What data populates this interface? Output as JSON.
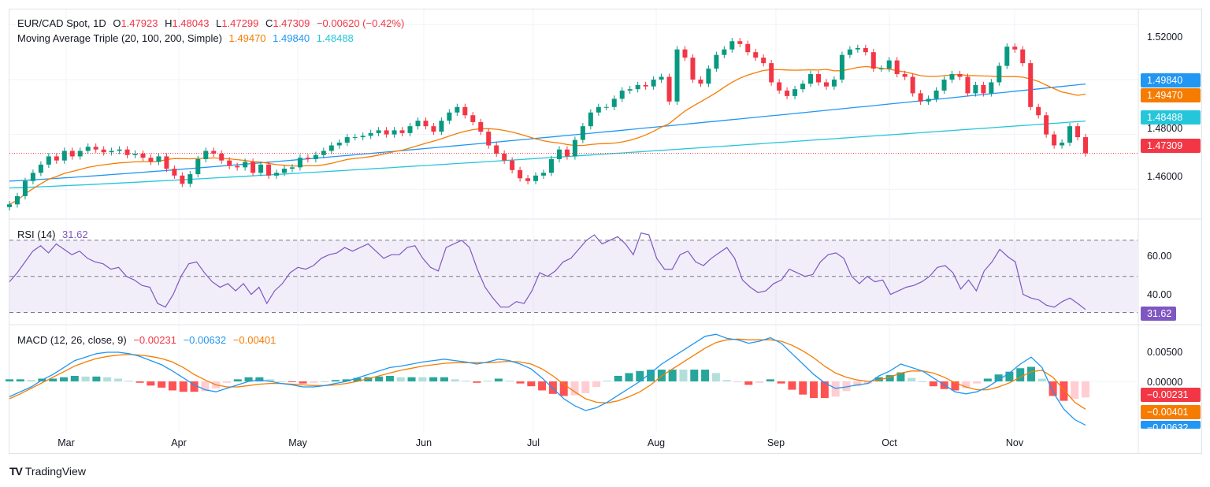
{
  "header": {
    "symbol": "EUR/CAD Spot, 1D",
    "open_label": "O",
    "open": "1.47923",
    "high_label": "H",
    "high": "1.48043",
    "low_label": "L",
    "low": "1.47299",
    "close_label": "C",
    "close": "1.47309",
    "change": "−0.00620 (−0.42%)"
  },
  "ma_legend": {
    "label": "Moving Average Triple (20, 100, 200, Simple)",
    "ma20": "1.49470",
    "ma100": "1.49840",
    "ma200": "1.48488"
  },
  "rsi_legend": {
    "label": "RSI (14)",
    "value": "31.62"
  },
  "macd_legend": {
    "label": "MACD (12, 26, close, 9)",
    "hist": "−0.00231",
    "macd": "−0.00632",
    "signal": "−0.00401"
  },
  "price_axis": [
    "1.52000",
    "1.48000",
    "1.46000"
  ],
  "price_badges": {
    "ma100": "1.49840",
    "ma20": "1.49470",
    "ma200": "1.48488",
    "close": "1.47309"
  },
  "rsi_axis": [
    "60.00",
    "40.00"
  ],
  "rsi_badge": "31.62",
  "macd_axis": [
    "0.00500",
    "0.00000"
  ],
  "macd_badges": {
    "hist": "−0.00231",
    "signal": "−0.00401",
    "macd": "−0.00632"
  },
  "x_axis": [
    "Mar",
    "Apr",
    "May",
    "Jun",
    "Jul",
    "Aug",
    "Sep",
    "Oct",
    "Nov"
  ],
  "brand": "TradingView",
  "colors": {
    "up": "#089981",
    "down": "#f23645",
    "ma20": "#f57c00",
    "ma100": "#2196f3",
    "ma200": "#26c6da",
    "rsi": "#7e57c2"
  },
  "chart_data": [
    {
      "type": "candlestick",
      "title": "EUR/CAD Spot, 1D",
      "ylim": [
        1.45,
        1.525
      ],
      "close_series_approx": [
        1.4545,
        1.4575,
        1.463,
        1.466,
        1.469,
        1.472,
        1.4705,
        1.474,
        1.472,
        1.474,
        1.4755,
        1.4745,
        1.4735,
        1.474,
        1.4745,
        1.4725,
        1.473,
        1.4715,
        1.47,
        1.472,
        1.4675,
        1.465,
        1.462,
        1.4655,
        1.471,
        1.474,
        1.473,
        1.4705,
        1.4685,
        1.468,
        1.47,
        1.466,
        1.469,
        1.465,
        1.466,
        1.4675,
        1.468,
        1.4715,
        1.471,
        1.4725,
        1.474,
        1.476,
        1.477,
        1.479,
        1.479,
        1.4795,
        1.4805,
        1.4815,
        1.48,
        1.4815,
        1.4805,
        1.483,
        1.485,
        1.483,
        1.481,
        1.485,
        1.488,
        1.49,
        1.487,
        1.4845,
        1.481,
        1.476,
        1.473,
        1.4705,
        1.467,
        1.464,
        1.463,
        1.465,
        1.466,
        1.471,
        1.4745,
        1.472,
        1.478,
        1.483,
        1.488,
        1.49,
        1.49,
        1.493,
        1.496,
        1.4965,
        1.498,
        1.4975,
        1.5,
        1.501,
        1.492,
        1.511,
        1.508,
        1.5,
        1.4985,
        1.504,
        1.509,
        1.511,
        1.514,
        1.513,
        1.51,
        1.508,
        1.506,
        1.499,
        1.496,
        1.494,
        1.4965,
        1.4985,
        1.502,
        1.499,
        1.4975,
        1.5,
        1.509,
        1.511,
        1.5115,
        1.51,
        1.504,
        1.504,
        1.507,
        1.502,
        1.501,
        1.495,
        1.492,
        1.493,
        1.496,
        1.5,
        1.502,
        1.501,
        1.495,
        1.498,
        1.495,
        1.499,
        1.505,
        1.512,
        1.511,
        1.506,
        1.49,
        1.487,
        1.48,
        1.476,
        1.477,
        1.483,
        1.479,
        1.4731
      ],
      "series": [
        {
          "name": "MA 20",
          "last": 1.4947
        },
        {
          "name": "MA 100",
          "last": 1.4984
        },
        {
          "name": "MA 200",
          "last": 1.48488
        }
      ]
    },
    {
      "type": "line",
      "title": "RSI (14)",
      "ylim": [
        25,
        80
      ],
      "bands": [
        30,
        50,
        70
      ],
      "values_approx": [
        47,
        52,
        58,
        64,
        67,
        63,
        68,
        65,
        62,
        64,
        60,
        58,
        57,
        54,
        55,
        50,
        48,
        45,
        44,
        35,
        33,
        40,
        50,
        57,
        58,
        52,
        47,
        44,
        46,
        42,
        46,
        40,
        44,
        35,
        42,
        46,
        52,
        55,
        54,
        56,
        60,
        62,
        63,
        66,
        64,
        66,
        68,
        64,
        60,
        62,
        62,
        66,
        67,
        60,
        55,
        53,
        66,
        68,
        70,
        66,
        54,
        44,
        38,
        33,
        33,
        36,
        35,
        42,
        52,
        50,
        53,
        58,
        60,
        65,
        70,
        73,
        68,
        70,
        72,
        68,
        62,
        74,
        73,
        60,
        54,
        54,
        62,
        64,
        58,
        56,
        60,
        63,
        66,
        60,
        48,
        44,
        41,
        42,
        46,
        48,
        54,
        52,
        50,
        51,
        58,
        62,
        63,
        60,
        50,
        46,
        50,
        47,
        48,
        40,
        42,
        44,
        45,
        47,
        50,
        55,
        56,
        52,
        43,
        48,
        42,
        53,
        58,
        65,
        61,
        58,
        40,
        38,
        37,
        34,
        33,
        36,
        38,
        35,
        31.62
      ],
      "last": 31.62
    },
    {
      "type": "bar",
      "title": "MACD (12, 26, close, 9)",
      "ylim": [
        -0.0075,
        0.0075
      ],
      "macd_last": -0.00632,
      "signal_last": -0.00401,
      "histogram_last": -0.00231,
      "macd_approx": [
        -0.0022,
        -0.0015,
        -0.0008,
        0.0002,
        0.001,
        0.002,
        0.003,
        0.0035,
        0.004,
        0.0042,
        0.0042,
        0.004,
        0.0036,
        0.003,
        0.0024,
        0.0015,
        0.0005,
        -0.0005,
        -0.0012,
        -0.0015,
        -0.001,
        -0.0005,
        0.0,
        0.0002,
        0.0,
        -0.0003,
        -0.0005,
        -0.0008,
        -0.0008,
        -0.0006,
        -0.0003,
        0.0,
        0.0005,
        0.001,
        0.0015,
        0.002,
        0.0022,
        0.0025,
        0.0028,
        0.003,
        0.0032,
        0.003,
        0.0028,
        0.0025,
        0.0028,
        0.0032,
        0.003,
        0.0025,
        0.0018,
        0.0005,
        -0.001,
        -0.0025,
        -0.0035,
        -0.0042,
        -0.0038,
        -0.003,
        -0.002,
        -0.001,
        0.0,
        0.0012,
        0.0025,
        0.0035,
        0.0045,
        0.0055,
        0.0065,
        0.0068,
        0.0062,
        0.006,
        0.0055,
        0.0058,
        0.0063,
        0.0055,
        0.004,
        0.0025,
        0.001,
        -0.0002,
        -0.001,
        -0.0008,
        -0.0005,
        -0.0003,
        0.0008,
        0.0015,
        0.0025,
        0.002,
        0.0015,
        0.0005,
        -0.0005,
        -0.0015,
        -0.0018,
        -0.0015,
        -0.0008,
        0.0002,
        0.0012,
        0.0025,
        0.0035,
        0.002,
        -0.0015,
        -0.004,
        -0.0055,
        -0.00632
      ],
      "signal_approx": [
        -0.0025,
        -0.0018,
        -0.001,
        -0.0002,
        0.0006,
        0.0014,
        0.0022,
        0.0028,
        0.0033,
        0.0036,
        0.0038,
        0.0039,
        0.0038,
        0.0036,
        0.0033,
        0.0028,
        0.002,
        0.001,
        0.0002,
        -0.0005,
        -0.0008,
        -0.0008,
        -0.0006,
        -0.0004,
        -0.0003,
        -0.0003,
        -0.0004,
        -0.0005,
        -0.0006,
        -0.0006,
        -0.0005,
        -0.0003,
        0.0,
        0.0004,
        0.0008,
        0.0012,
        0.0016,
        0.0019,
        0.0022,
        0.0024,
        0.0026,
        0.0027,
        0.0027,
        0.0027,
        0.0027,
        0.0028,
        0.0029,
        0.0028,
        0.0025,
        0.0018,
        0.0008,
        -0.0004,
        -0.0015,
        -0.0025,
        -0.003,
        -0.0031,
        -0.0028,
        -0.0022,
        -0.0015,
        -0.0005,
        0.0008,
        0.0018,
        0.0028,
        0.0038,
        0.0048,
        0.0056,
        0.006,
        0.0061,
        0.006,
        0.006,
        0.006,
        0.0058,
        0.0052,
        0.0044,
        0.0034,
        0.0022,
        0.0012,
        0.0006,
        0.0002,
        0.0,
        0.0002,
        0.0006,
        0.0012,
        0.0015,
        0.0015,
        0.0012,
        0.0006,
        -0.0002,
        -0.0008,
        -0.0012,
        -0.0012,
        -0.0008,
        -0.0002,
        0.0006,
        0.0014,
        0.0016,
        0.0006,
        -0.0012,
        -0.003,
        -0.00401
      ]
    }
  ]
}
